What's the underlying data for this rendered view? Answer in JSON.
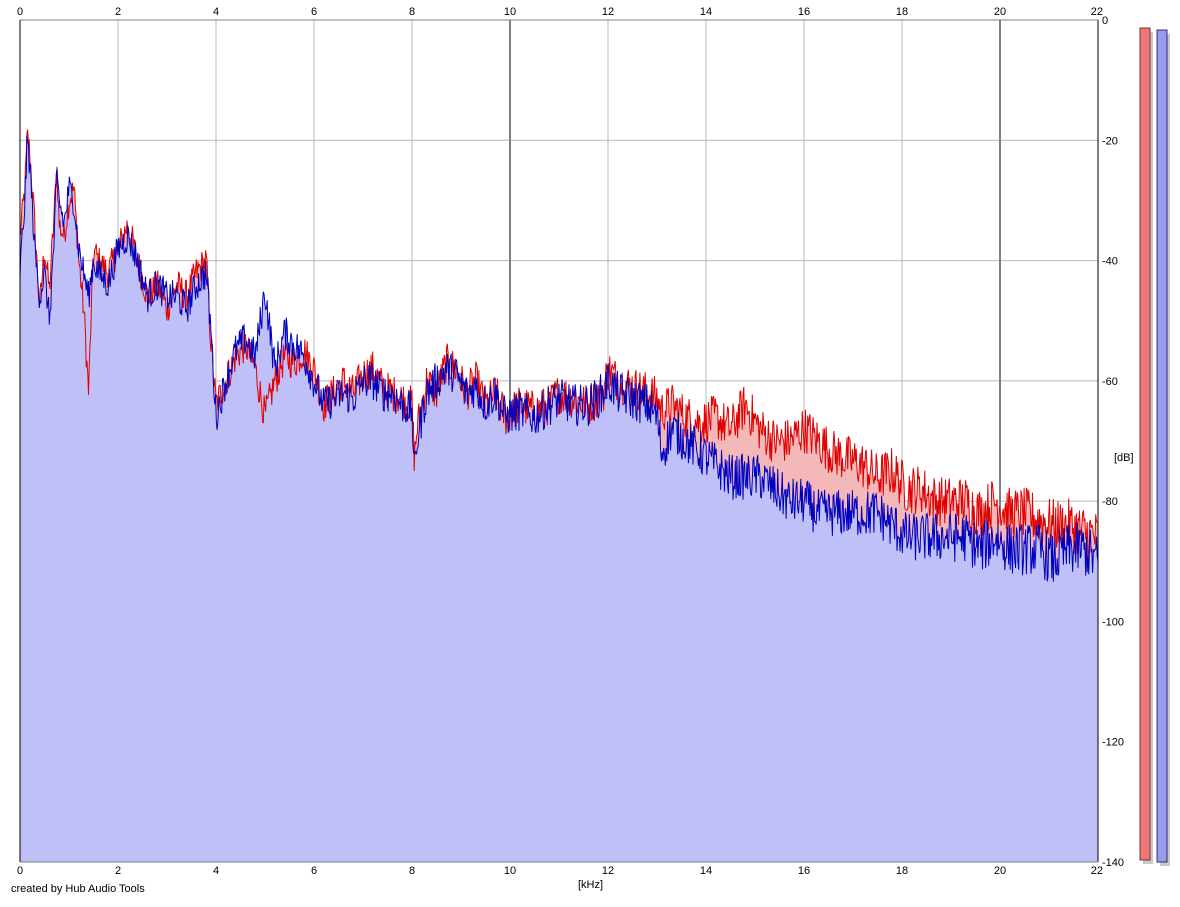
{
  "footer": {
    "credit": "created by Hub Audio Tools"
  },
  "colors": {
    "red_line": "#e00000",
    "red_fill": "#f4b8b8",
    "blue_line": "#0000c0",
    "blue_fill": "#c0c0f8",
    "grid": "#b8b8b8",
    "grid_major": "#808080",
    "meter_red": "#ee7777",
    "meter_blue": "#9a9aee"
  },
  "chart_data": {
    "type": "area",
    "title": "",
    "xlabel": "[kHz]",
    "ylabel": "[dB]",
    "xlim": [
      0,
      22
    ],
    "ylim": [
      -140,
      0
    ],
    "x_ticks": [
      "0",
      "2",
      "4",
      "6",
      "8",
      "10",
      "12",
      "14",
      "16",
      "18",
      "20",
      "22"
    ],
    "y_ticks": [
      "0",
      "-20",
      "-40",
      "-60",
      "-80",
      "-100",
      "-120",
      "-140"
    ],
    "grid": true,
    "legend": "none",
    "x": [
      0,
      0.1,
      0.15,
      0.2,
      0.3,
      0.4,
      0.5,
      0.6,
      0.7,
      0.75,
      0.8,
      0.9,
      1.0,
      1.1,
      1.2,
      1.3,
      1.4,
      1.5,
      1.6,
      1.8,
      2.0,
      2.2,
      2.4,
      2.6,
      2.8,
      3.0,
      3.2,
      3.4,
      3.6,
      3.8,
      3.9,
      4.0,
      4.2,
      4.4,
      4.6,
      4.8,
      5.0,
      5.2,
      5.4,
      5.6,
      5.8,
      6.0,
      6.2,
      6.4,
      6.6,
      6.8,
      7.0,
      7.2,
      7.4,
      7.6,
      7.8,
      8.0,
      8.05,
      8.1,
      8.3,
      8.5,
      8.7,
      8.9,
      9.1,
      9.3,
      9.5,
      9.7,
      9.9,
      10.2,
      10.5,
      10.8,
      11.0,
      11.3,
      11.6,
      11.9,
      12.0,
      12.2,
      12.5,
      12.8,
      13.0,
      13.1,
      13.3,
      13.6,
      13.9,
      14.2,
      14.5,
      14.8,
      15.1,
      15.4,
      15.7,
      16.0,
      16.3,
      16.6,
      16.9,
      17.2,
      17.5,
      17.8,
      18.1,
      18.4,
      18.7,
      19.0,
      19.3,
      19.6,
      19.9,
      20.2,
      20.5,
      20.8,
      21.1,
      21.4,
      21.7,
      22.0
    ],
    "series": [
      {
        "values": [
          -36,
          -28,
          -19,
          -22,
          -34,
          -48,
          -38,
          -45,
          -32,
          -24,
          -34,
          -36,
          -30,
          -28,
          -40,
          -48,
          -62,
          -38,
          -40,
          -42,
          -38,
          -34,
          -40,
          -46,
          -44,
          -48,
          -44,
          -46,
          -42,
          -40,
          -54,
          -64,
          -60,
          -56,
          -54,
          -58,
          -66,
          -60,
          -56,
          -57,
          -55,
          -58,
          -64,
          -62,
          -60,
          -62,
          -59,
          -58,
          -61,
          -62,
          -63,
          -64,
          -73,
          -68,
          -60,
          -62,
          -57,
          -58,
          -62,
          -60,
          -64,
          -62,
          -66,
          -64,
          -65,
          -64,
          -62,
          -63,
          -64,
          -62,
          -58,
          -60,
          -61,
          -62,
          -63,
          -65,
          -64,
          -66,
          -67,
          -66,
          -68,
          -64,
          -68,
          -70,
          -70,
          -68,
          -70,
          -72,
          -73,
          -74,
          -76,
          -75,
          -78,
          -78,
          -80,
          -80,
          -80,
          -82,
          -80,
          -82,
          -82,
          -83,
          -84,
          -84,
          -85,
          -86
        ]
      },
      {
        "values": [
          -42,
          -30,
          -20,
          -24,
          -38,
          -46,
          -42,
          -50,
          -36,
          -26,
          -30,
          -34,
          -28,
          -30,
          -38,
          -42,
          -46,
          -40,
          -42,
          -44,
          -38,
          -36,
          -40,
          -46,
          -44,
          -46,
          -46,
          -48,
          -44,
          -42,
          -52,
          -66,
          -60,
          -55,
          -53,
          -56,
          -45,
          -58,
          -52,
          -54,
          -56,
          -60,
          -64,
          -63,
          -62,
          -63,
          -60,
          -60,
          -62,
          -62,
          -64,
          -65,
          -76,
          -70,
          -62,
          -60,
          -58,
          -59,
          -62,
          -61,
          -64,
          -62,
          -66,
          -65,
          -66,
          -64,
          -63,
          -64,
          -64,
          -62,
          -60,
          -62,
          -63,
          -64,
          -66,
          -72,
          -68,
          -70,
          -72,
          -74,
          -76,
          -76,
          -76,
          -78,
          -80,
          -80,
          -82,
          -82,
          -82,
          -82,
          -82,
          -84,
          -86,
          -86,
          -86,
          -86,
          -86,
          -88,
          -86,
          -88,
          -88,
          -88,
          -90,
          -88,
          -88,
          -90
        ]
      }
    ]
  }
}
